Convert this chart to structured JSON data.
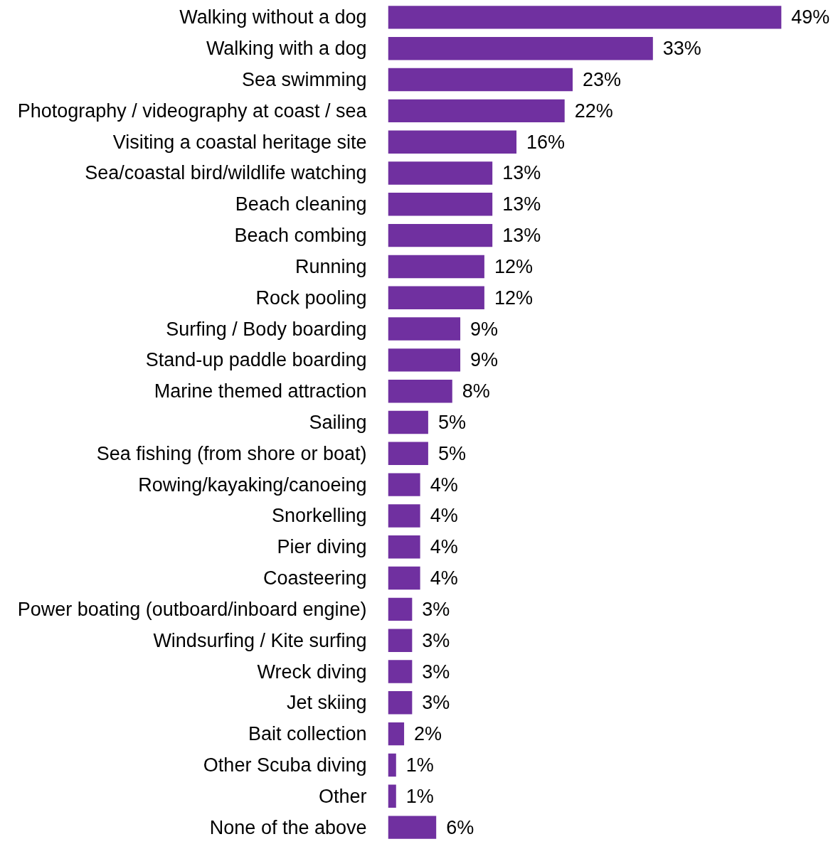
{
  "chart_data": {
    "type": "bar",
    "orientation": "horizontal",
    "categories": [
      "Walking without a dog",
      "Walking with a dog",
      "Sea swimming",
      "Photography / videography at coast / sea",
      "Visiting a coastal heritage site",
      "Sea/coastal bird/wildlife watching",
      "Beach cleaning",
      "Beach combing",
      "Running",
      "Rock pooling",
      "Surfing / Body boarding",
      "Stand-up paddle boarding",
      "Marine themed attraction",
      "Sailing",
      "Sea fishing (from shore or boat)",
      "Rowing/kayaking/canoeing",
      "Snorkelling",
      "Pier diving",
      "Coasteering",
      "Power boating (outboard/inboard engine)",
      "Windsurfing / Kite surfing",
      "Wreck diving",
      "Jet skiing",
      "Bait collection",
      "Other Scuba diving",
      "Other",
      "None of the above"
    ],
    "values": [
      49,
      33,
      23,
      22,
      16,
      13,
      13,
      13,
      12,
      12,
      9,
      9,
      8,
      5,
      5,
      4,
      4,
      4,
      4,
      3,
      3,
      3,
      3,
      2,
      1,
      1,
      6
    ],
    "value_labels": [
      "49%",
      "33%",
      "23%",
      "22%",
      "16%",
      "13%",
      "13%",
      "13%",
      "12%",
      "12%",
      "9%",
      "9%",
      "8%",
      "5%",
      "5%",
      "4%",
      "4%",
      "4%",
      "4%",
      "3%",
      "3%",
      "3%",
      "3%",
      "2%",
      "1%",
      "1%",
      "6%"
    ],
    "color": "#7030a0",
    "tick_labels": "y",
    "grid": false
  }
}
